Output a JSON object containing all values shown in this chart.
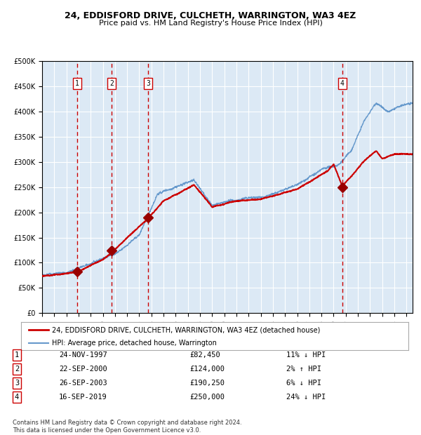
{
  "title": "24, EDDISFORD DRIVE, CULCHETH, WARRINGTON, WA3 4EZ",
  "subtitle": "Price paid vs. HM Land Registry's House Price Index (HPI)",
  "ylabel_prefix": "£",
  "ylim": [
    0,
    500000
  ],
  "yticks": [
    0,
    50000,
    100000,
    150000,
    200000,
    250000,
    300000,
    350000,
    400000,
    450000,
    500000
  ],
  "ytick_labels": [
    "£0",
    "£50K",
    "£100K",
    "£150K",
    "£200K",
    "£250K",
    "£300K",
    "£350K",
    "£400K",
    "£450K",
    "£500K"
  ],
  "xlim_start": 1995.0,
  "xlim_end": 2025.5,
  "background_color": "#dce9f5",
  "grid_color": "#ffffff",
  "hpi_color": "#6699cc",
  "price_color": "#cc0000",
  "sale_marker_color": "#990000",
  "sale_dashes_color": "#cc0000",
  "legend_label_price": "24, EDDISFORD DRIVE, CULCHETH, WARRINGTON, WA3 4EZ (detached house)",
  "legend_label_hpi": "HPI: Average price, detached house, Warrington",
  "sales": [
    {
      "num": 1,
      "date_x": 1997.9,
      "price": 82450,
      "label": "24-NOV-1997",
      "price_str": "£82,450",
      "hpi_pct": "11% ↓ HPI"
    },
    {
      "num": 2,
      "date_x": 2000.72,
      "price": 124000,
      "label": "22-SEP-2000",
      "price_str": "£124,000",
      "hpi_pct": "2% ↑ HPI"
    },
    {
      "num": 3,
      "date_x": 2003.72,
      "price": 190250,
      "label": "26-SEP-2003",
      "price_str": "£190,250",
      "hpi_pct": "6% ↓ HPI"
    },
    {
      "num": 4,
      "date_x": 2019.71,
      "price": 250000,
      "label": "16-SEP-2019",
      "price_str": "£250,000",
      "hpi_pct": "24% ↓ HPI"
    }
  ],
  "footer_line1": "Contains HM Land Registry data © Crown copyright and database right 2024.",
  "footer_line2": "This data is licensed under the Open Government Licence v3.0."
}
